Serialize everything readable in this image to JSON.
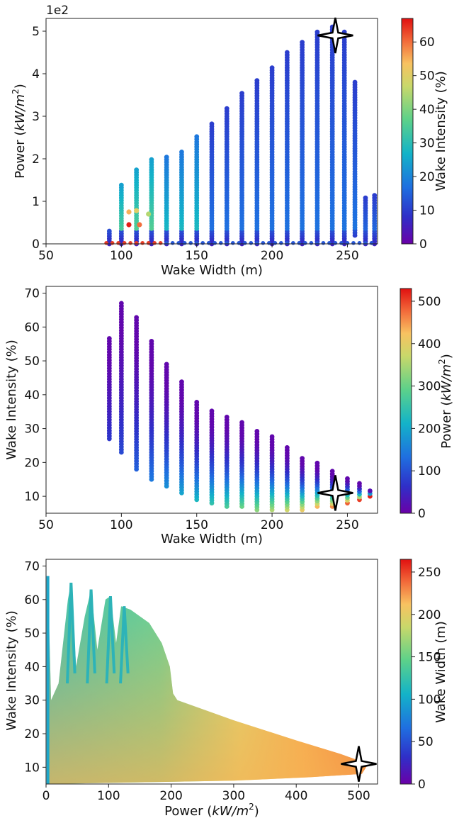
{
  "chart_data": [
    {
      "type": "scatter",
      "title": "",
      "xlabel": "Wake Width (m)",
      "ylabel": "Power (kW/m²)",
      "ylabel_prefix": "Power (",
      "ylabel_unit": "kW/m",
      "ylabel_exp": "2",
      "ylabel_suffix": ")",
      "y_offset_label": "1e2",
      "xlim": [
        50,
        270
      ],
      "ylim": [
        0,
        5.3
      ],
      "xticks": [
        "50",
        "100",
        "150",
        "200",
        "250"
      ],
      "yticks": [
        "0",
        "1",
        "2",
        "3",
        "4",
        "5"
      ],
      "colorbar": {
        "label": "Wake Intensity (%)",
        "range": [
          0,
          67
        ],
        "ticks": [
          "0",
          "10",
          "20",
          "30",
          "40",
          "50",
          "60"
        ]
      },
      "color_variable": "Wake Intensity (%)",
      "columns": [
        {
          "x": 92,
          "ymin": 0.0,
          "ymax": 0.35
        },
        {
          "x": 100,
          "ymin": 0.0,
          "ymax": 1.4
        },
        {
          "x": 110,
          "ymin": 0.0,
          "ymax": 1.8
        },
        {
          "x": 120,
          "ymin": 0.0,
          "ymax": 2.0
        },
        {
          "x": 130,
          "ymin": 0.0,
          "ymax": 2.05
        },
        {
          "x": 140,
          "ymin": 0.0,
          "ymax": 2.2
        },
        {
          "x": 150,
          "ymin": 0.0,
          "ymax": 2.55
        },
        {
          "x": 160,
          "ymin": 0.0,
          "ymax": 2.85
        },
        {
          "x": 170,
          "ymin": 0.0,
          "ymax": 3.2
        },
        {
          "x": 180,
          "ymin": 0.0,
          "ymax": 3.55
        },
        {
          "x": 190,
          "ymin": 0.0,
          "ymax": 3.85
        },
        {
          "x": 200,
          "ymin": 0.0,
          "ymax": 4.2
        },
        {
          "x": 210,
          "ymin": 0.0,
          "ymax": 4.5
        },
        {
          "x": 220,
          "ymin": 0.0,
          "ymax": 4.75
        },
        {
          "x": 230,
          "ymin": 0.0,
          "ymax": 5.0
        },
        {
          "x": 240,
          "ymin": 0.0,
          "ymax": 5.1
        },
        {
          "x": 248,
          "ymin": 0.0,
          "ymax": 5.0
        },
        {
          "x": 255,
          "ymin": 0.2,
          "ymax": 3.85
        },
        {
          "x": 262,
          "ymin": 0.0,
          "ymax": 1.1
        },
        {
          "x": 268,
          "ymin": 0.0,
          "ymax": 1.15
        }
      ],
      "optimum": {
        "x": 242,
        "y": 4.9
      }
    },
    {
      "type": "scatter",
      "title": "",
      "xlabel": "Wake Width (m)",
      "ylabel": "Wake Intensity (%)",
      "xlim": [
        50,
        270
      ],
      "ylim": [
        5,
        72
      ],
      "xticks": [
        "50",
        "100",
        "150",
        "200",
        "250"
      ],
      "yticks": [
        "10",
        "20",
        "30",
        "40",
        "50",
        "60",
        "70"
      ],
      "colorbar": {
        "label": "Power (kW/m²)",
        "label_prefix": "Power (",
        "label_unit": "kW/m",
        "label_exp": "2",
        "label_suffix": ")",
        "range": [
          0,
          530
        ],
        "ticks": [
          "0",
          "100",
          "200",
          "300",
          "400",
          "500"
        ]
      },
      "color_variable": "Power (kW/m²)",
      "columns": [
        {
          "x": 92,
          "ymin": 27,
          "ymax": 57
        },
        {
          "x": 100,
          "ymin": 23,
          "ymax": 67
        },
        {
          "x": 110,
          "ymin": 18,
          "ymax": 63
        },
        {
          "x": 120,
          "ymin": 15,
          "ymax": 56
        },
        {
          "x": 130,
          "ymin": 13,
          "ymax": 49
        },
        {
          "x": 140,
          "ymin": 11,
          "ymax": 44
        },
        {
          "x": 150,
          "ymin": 9,
          "ymax": 38
        },
        {
          "x": 160,
          "ymin": 8,
          "ymax": 36
        },
        {
          "x": 170,
          "ymin": 7,
          "ymax": 34
        },
        {
          "x": 180,
          "ymin": 7,
          "ymax": 32
        },
        {
          "x": 190,
          "ymin": 6,
          "ymax": 30
        },
        {
          "x": 200,
          "ymin": 6,
          "ymax": 28
        },
        {
          "x": 210,
          "ymin": 6,
          "ymax": 25
        },
        {
          "x": 220,
          "ymin": 6,
          "ymax": 22
        },
        {
          "x": 230,
          "ymin": 7,
          "ymax": 20
        },
        {
          "x": 240,
          "ymin": 7,
          "ymax": 18
        },
        {
          "x": 250,
          "ymin": 8,
          "ymax": 16
        },
        {
          "x": 258,
          "ymin": 9,
          "ymax": 14
        },
        {
          "x": 265,
          "ymin": 10,
          "ymax": 12
        }
      ],
      "optimum": {
        "x": 242,
        "y": 11
      }
    },
    {
      "type": "scatter",
      "title": "",
      "xlabel": "Power (kW/m²)",
      "xlabel_prefix": "Power (",
      "xlabel_unit": "kW/m",
      "xlabel_exp": "2",
      "xlabel_suffix": ")",
      "ylabel": "Wake Intensity (%)",
      "xlim": [
        0,
        530
      ],
      "ylim": [
        5,
        72
      ],
      "xticks": [
        "0",
        "100",
        "200",
        "300",
        "400",
        "500"
      ],
      "yticks": [
        "10",
        "20",
        "30",
        "40",
        "50",
        "60",
        "70"
      ],
      "colorbar": {
        "label": "Wake Width (m)",
        "range": [
          0,
          265
        ],
        "ticks": [
          "0",
          "50",
          "100",
          "150",
          "200",
          "250"
        ]
      },
      "color_variable": "Wake Width (m)",
      "boundary": [
        [
          3,
          67
        ],
        [
          8,
          30
        ],
        [
          20,
          35
        ],
        [
          35,
          60
        ],
        [
          40,
          65
        ],
        [
          48,
          40
        ],
        [
          62,
          55
        ],
        [
          72,
          63
        ],
        [
          82,
          45
        ],
        [
          95,
          60
        ],
        [
          103,
          61
        ],
        [
          112,
          47
        ],
        [
          120,
          58
        ],
        [
          135,
          57
        ],
        [
          165,
          53
        ],
        [
          185,
          47
        ],
        [
          198,
          40
        ],
        [
          203,
          32
        ],
        [
          210,
          30
        ],
        [
          300,
          24
        ],
        [
          400,
          18
        ],
        [
          470,
          14
        ],
        [
          515,
          11
        ],
        [
          505,
          8
        ],
        [
          420,
          7
        ],
        [
          300,
          6
        ],
        [
          150,
          5.5
        ],
        [
          5,
          5
        ]
      ],
      "optimum": {
        "x": 500,
        "y": 11
      }
    }
  ]
}
